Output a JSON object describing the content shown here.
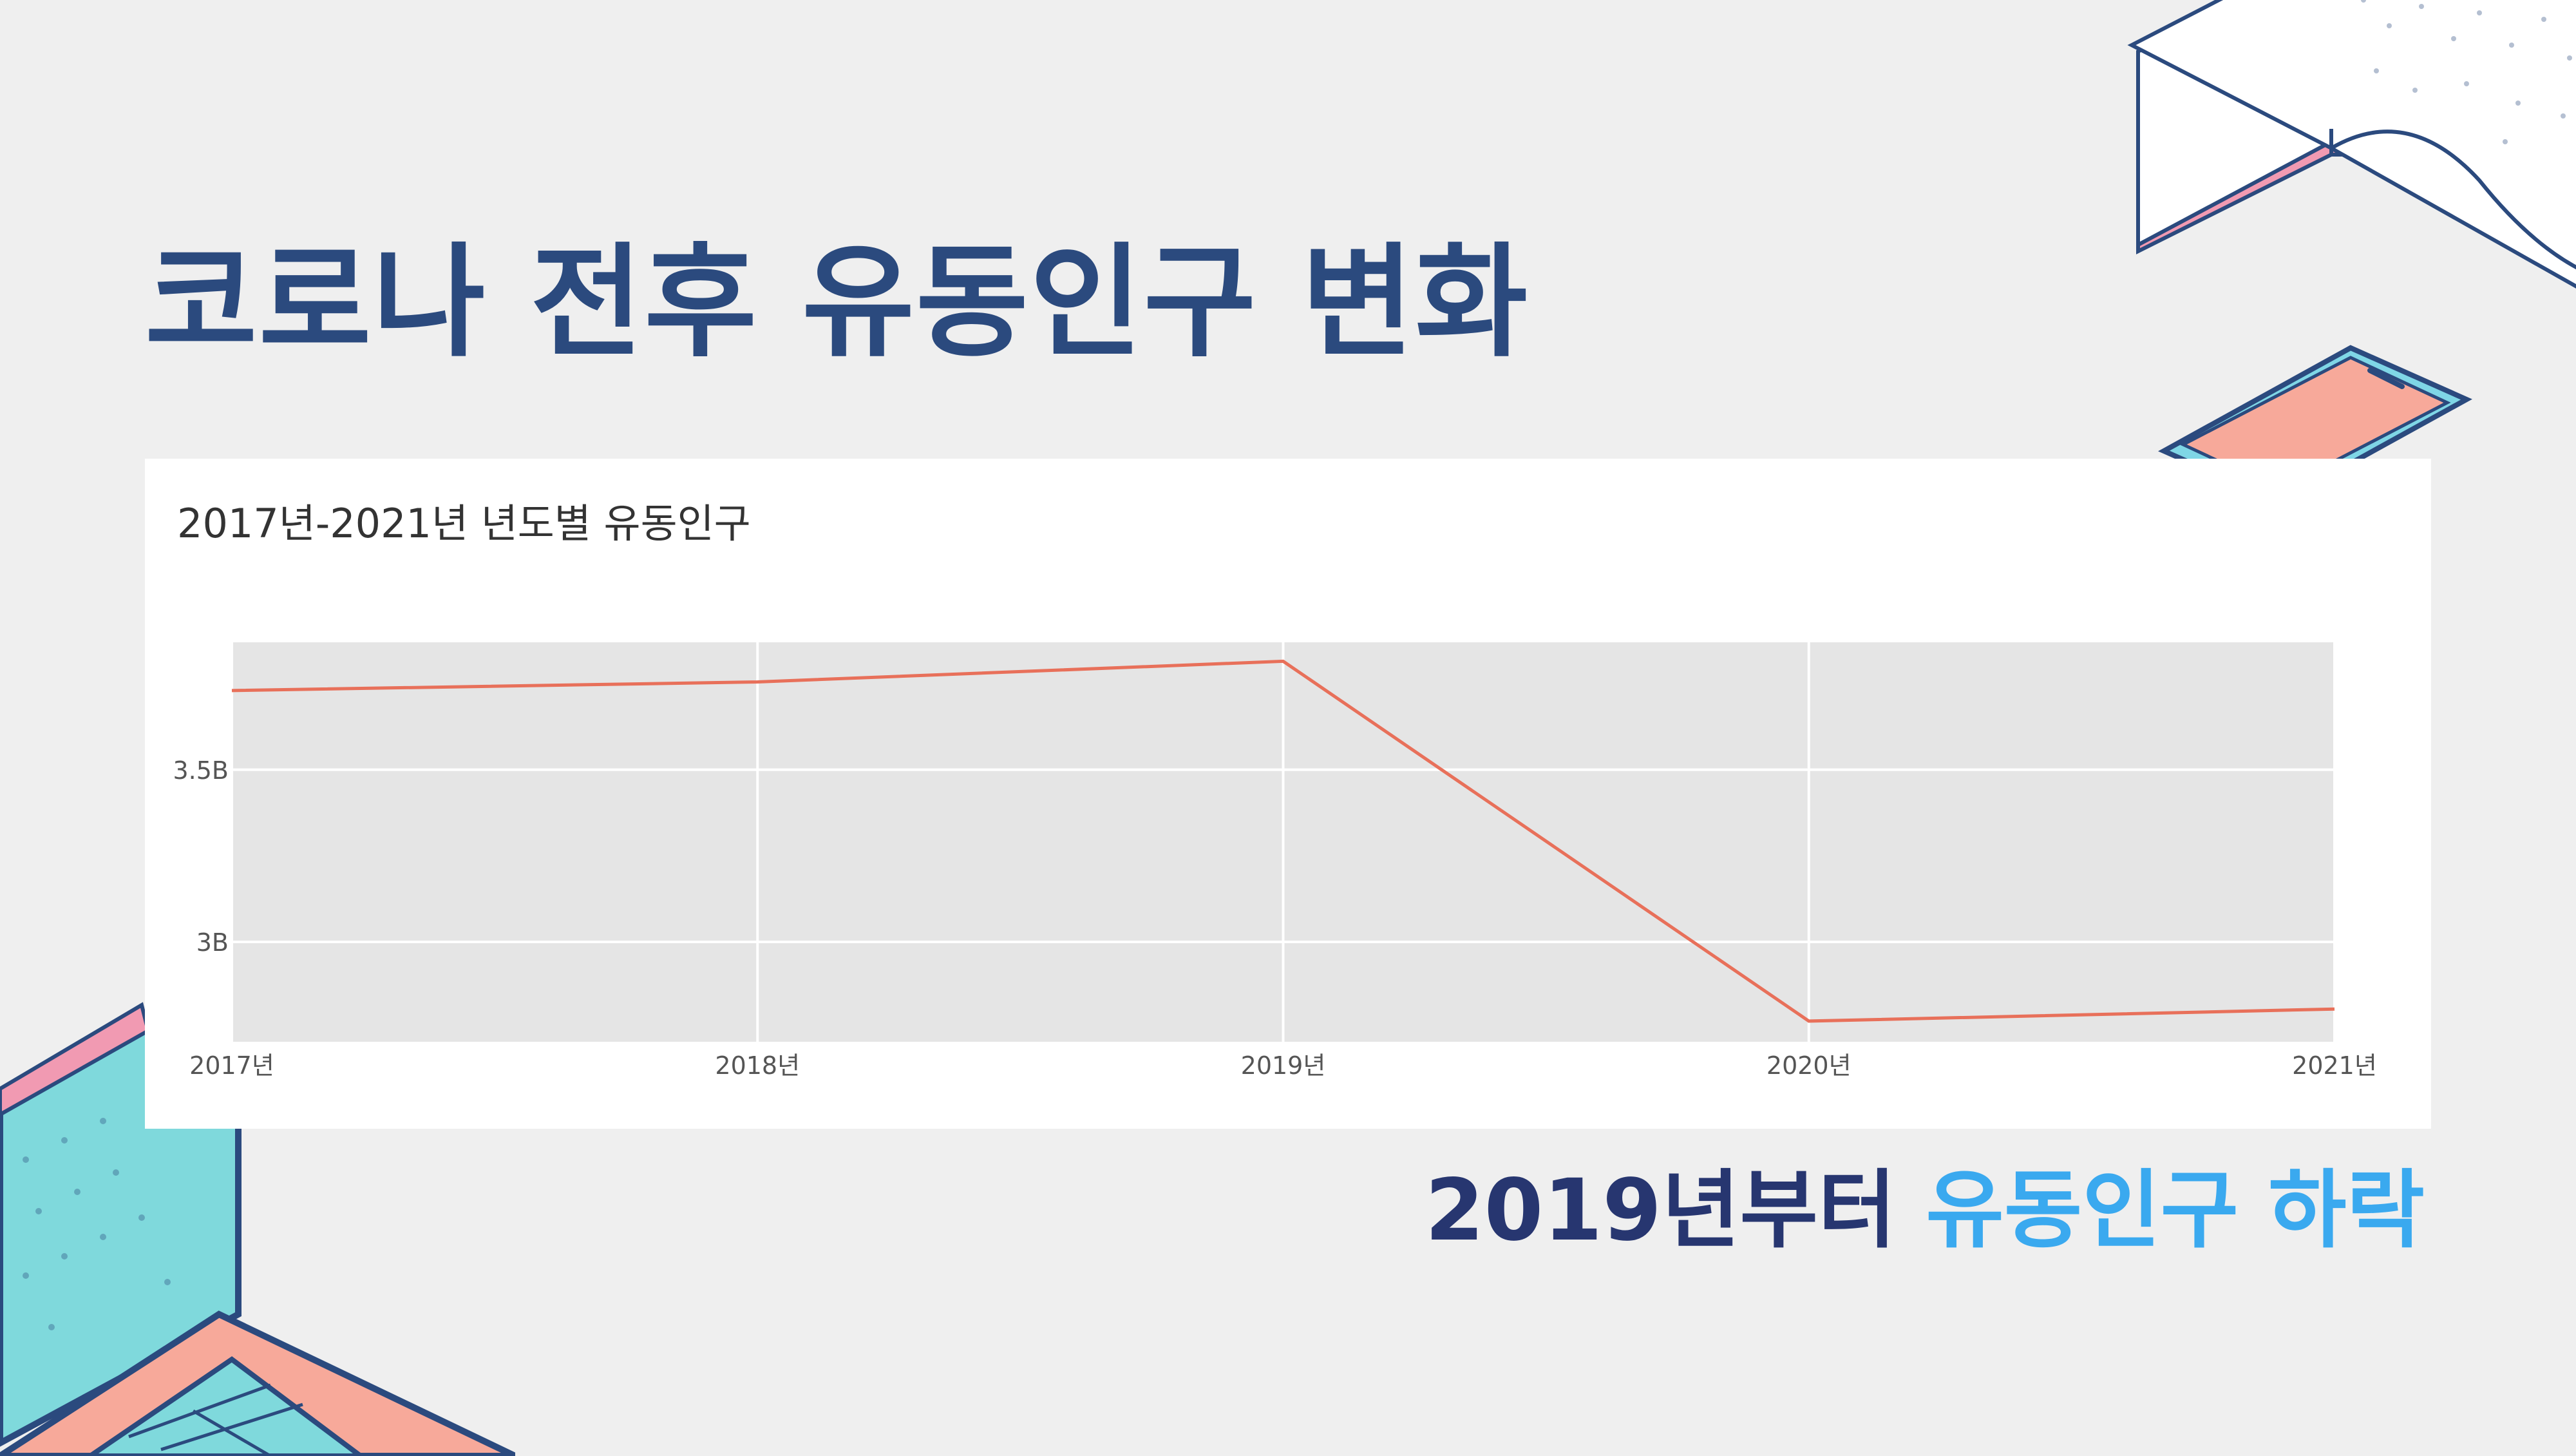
{
  "slide": {
    "title": "코로나 전후 유동인구 변화",
    "conclusion_prefix": "2019년부터 ",
    "conclusion_highlight": "유동인구 하락"
  },
  "colors": {
    "title": "#2b4a7e",
    "conclusion_dark": "#273670",
    "conclusion_highlight": "#3aa9ef",
    "line": "#e8705a",
    "plot_bg": "#e5e5e5"
  },
  "chart_data": {
    "type": "line",
    "title": "2017년-2021년 년도별 유동인구",
    "categories": [
      "2017년",
      "2018년",
      "2019년",
      "2020년",
      "2021년"
    ],
    "values": [
      3730000000,
      3755000000,
      3815000000,
      2770000000,
      2805000000
    ],
    "y_ticks": [
      {
        "value": 3000000000,
        "label": "3B"
      },
      {
        "value": 3500000000,
        "label": "3.5B"
      }
    ],
    "ylim": [
      2710000000,
      3870000000
    ],
    "grid": true,
    "legend": "none"
  },
  "decorations": [
    "book-icon",
    "phone-icon",
    "laptop-icon"
  ]
}
